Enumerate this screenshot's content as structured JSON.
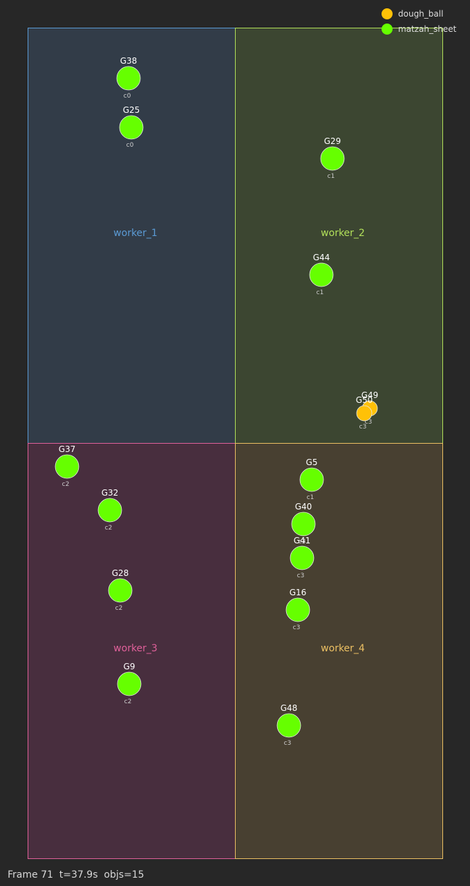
{
  "legend": [
    {
      "name": "dough_ball",
      "color": "#ffc107"
    },
    {
      "name": "matzah_sheet",
      "color": "#66ff00"
    }
  ],
  "zones": [
    {
      "id": "worker_1",
      "label": "worker_1",
      "stroke": "#5b9bd5",
      "fill": "#323c48"
    },
    {
      "id": "worker_2",
      "label": "worker_2",
      "stroke": "#b2e05a",
      "fill": "#3c4631"
    },
    {
      "id": "worker_3",
      "label": "worker_3",
      "stroke": "#e0609a",
      "fill": "#482e3e"
    },
    {
      "id": "worker_4",
      "label": "worker_4",
      "stroke": "#ecc063",
      "fill": "#484031"
    }
  ],
  "objects": [
    {
      "id": "G38",
      "kind": "matzah_sheet",
      "sub": "c0"
    },
    {
      "id": "G25",
      "kind": "matzah_sheet",
      "sub": "c0"
    },
    {
      "id": "G29",
      "kind": "matzah_sheet",
      "sub": "c1"
    },
    {
      "id": "G44",
      "kind": "matzah_sheet",
      "sub": "c1"
    },
    {
      "id": "G49",
      "kind": "dough_ball",
      "sub": "c3"
    },
    {
      "id": "G50",
      "kind": "dough_ball",
      "sub": "c3"
    },
    {
      "id": "G37",
      "kind": "matzah_sheet",
      "sub": "c2"
    },
    {
      "id": "G32",
      "kind": "matzah_sheet",
      "sub": "c2"
    },
    {
      "id": "G28",
      "kind": "matzah_sheet",
      "sub": "c2"
    },
    {
      "id": "G9",
      "kind": "matzah_sheet",
      "sub": "c2"
    },
    {
      "id": "G5",
      "kind": "matzah_sheet",
      "sub": "c1"
    },
    {
      "id": "G40",
      "kind": "matzah_sheet",
      "sub": "c3"
    },
    {
      "id": "G41",
      "kind": "matzah_sheet",
      "sub": "c3"
    },
    {
      "id": "G16",
      "kind": "matzah_sheet",
      "sub": "c3"
    },
    {
      "id": "G48",
      "kind": "matzah_sheet",
      "sub": "c3"
    }
  ],
  "footer": {
    "frame": "Frame 71",
    "time": "t=37.9s",
    "objs": "objs=15"
  }
}
